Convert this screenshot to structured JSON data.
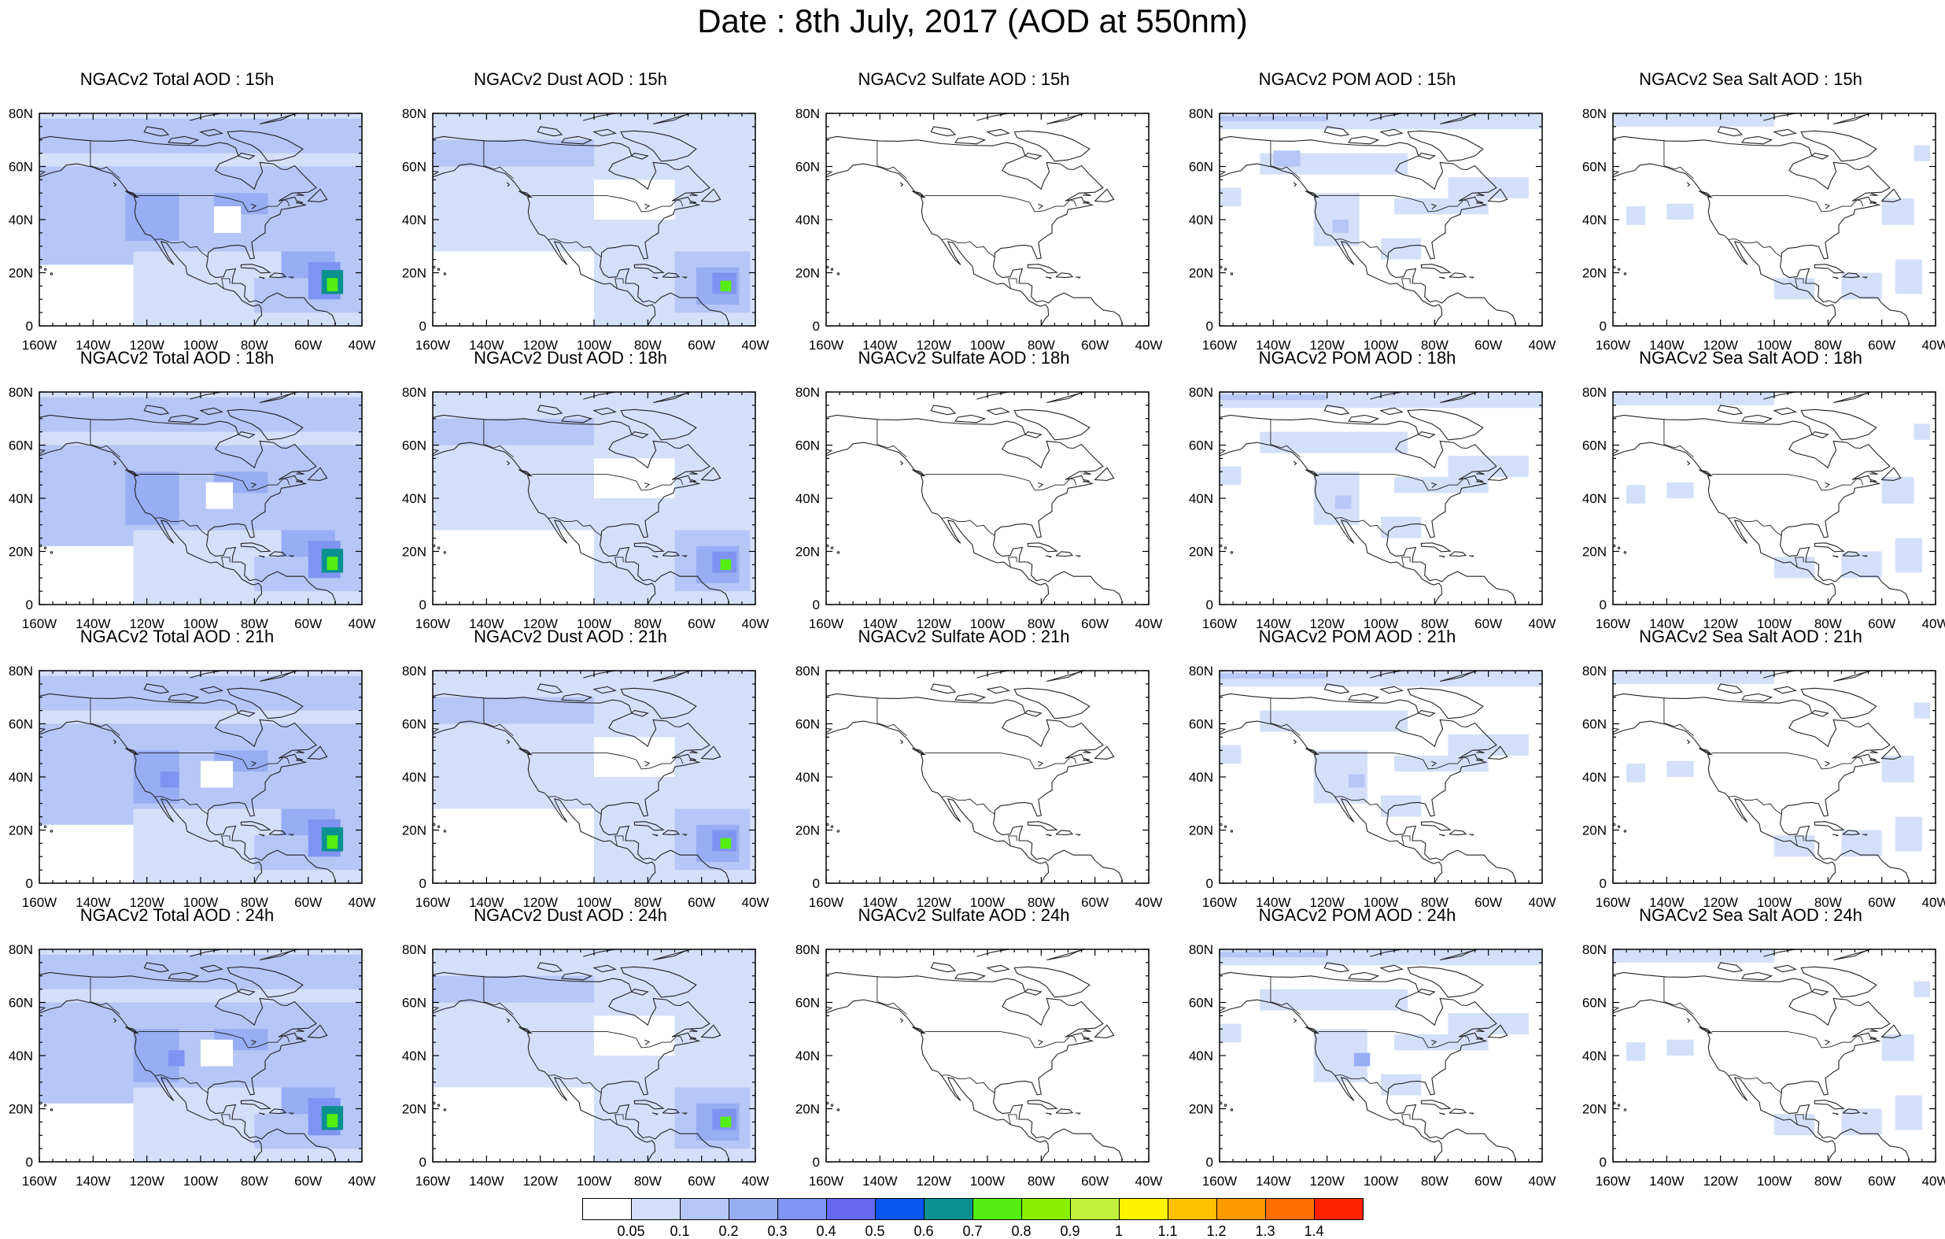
{
  "title": "Date : 8th July, 2017 (AOD at 550nm)",
  "x_ticks": [
    "160W",
    "140W",
    "120W",
    "100W",
    "80W",
    "60W",
    "40W"
  ],
  "y_ticks": [
    "80N",
    "60N",
    "40N",
    "20N",
    "0"
  ],
  "rows": [
    [
      "NGACv2 Total AOD : 15h",
      "NGACv2 Dust AOD : 15h",
      "NGACv2 Sulfate AOD : 15h",
      "NGACv2 POM AOD : 15h",
      "NGACv2 Sea Salt AOD : 15h"
    ],
    [
      "NGACv2 Total AOD : 18h",
      "NGACv2 Dust AOD : 18h",
      "NGACv2 Sulfate AOD : 18h",
      "NGACv2 POM AOD : 18h",
      "NGACv2 Sea Salt AOD : 18h"
    ],
    [
      "NGACv2 Total AOD : 21h",
      "NGACv2 Dust AOD : 21h",
      "NGACv2 Sulfate AOD : 21h",
      "NGACv2 POM AOD : 21h",
      "NGACv2 Sea Salt AOD : 21h"
    ],
    [
      "NGACv2 Total AOD : 24h",
      "NGACv2 Dust AOD : 24h",
      "NGACv2 Sulfate AOD : 24h",
      "NGACv2 POM AOD : 24h",
      "NGACv2 Sea Salt  AOD : 24h"
    ]
  ],
  "species": [
    "total",
    "dust",
    "sulfate",
    "pom",
    "seasalt"
  ],
  "colorbar": {
    "labels": [
      "0.05",
      "0.1",
      "0.2",
      "0.3",
      "0.4",
      "0.5",
      "0.6",
      "0.7",
      "0.8",
      "0.9",
      "1",
      "1.1",
      "1.2",
      "1.3",
      "1.4"
    ],
    "colors": [
      "#ffffff",
      "#d4dffa",
      "#b6c6f6",
      "#98adf4",
      "#7f94f2",
      "#6668ee",
      "#0a55f0",
      "#0a9090",
      "#55ee11",
      "#88f000",
      "#c0f23c",
      "#fff200",
      "#ffc000",
      "#ff9a00",
      "#ff6f00",
      "#ff2200"
    ]
  },
  "map_extent": {
    "lon": [
      -160,
      -40
    ],
    "lat": [
      0,
      80
    ]
  }
}
